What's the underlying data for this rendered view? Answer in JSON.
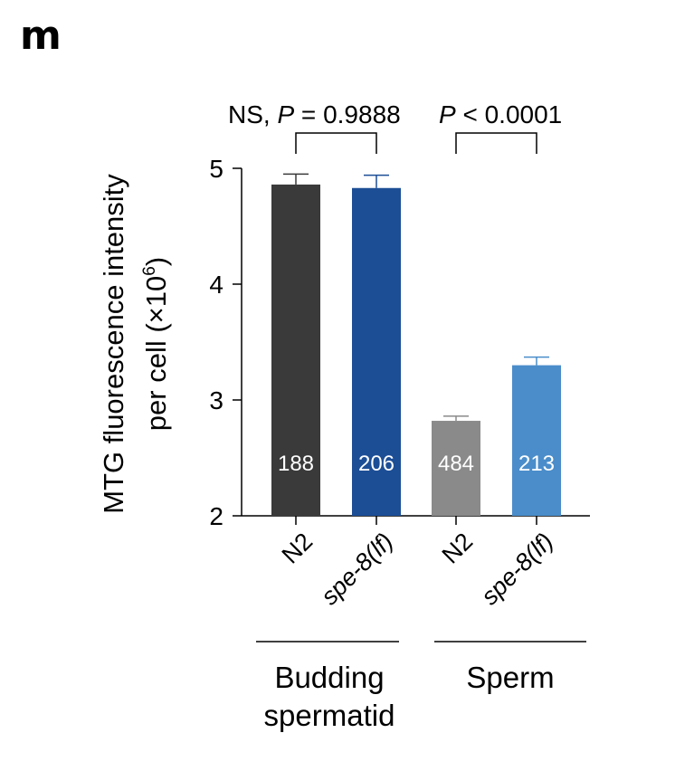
{
  "panel_label": "m",
  "chart_data": {
    "type": "bar",
    "ylabel_line1": "MTG fluorescence intensity",
    "ylabel_line2_prefix": "per cell (×10",
    "ylabel_line2_sup": "6",
    "ylabel_line2_suffix": ")",
    "ylim": [
      2,
      5
    ],
    "yticks": [
      "2",
      "3",
      "4",
      "5"
    ],
    "grid": false,
    "categories": [
      {
        "label": "N2",
        "italic": false
      },
      {
        "label": "spe-8(lf)",
        "italic": true
      },
      {
        "label": "N2",
        "italic": false
      },
      {
        "label": "spe-8(lf)",
        "italic": true
      }
    ],
    "values": [
      4.86,
      4.83,
      2.82,
      3.3
    ],
    "errors": [
      0.09,
      0.11,
      0.04,
      0.07
    ],
    "counts": [
      "188",
      "206",
      "484",
      "213"
    ],
    "colors": [
      "#3a3a3a",
      "#1c4e96",
      "#8a8a8a",
      "#4a8dca"
    ],
    "groups": [
      {
        "name_lines": [
          "Budding",
          "spermatid"
        ]
      },
      {
        "name_lines": [
          "Sperm"
        ]
      }
    ],
    "comparisons": [
      {
        "prefix": "NS, ",
        "p": "P",
        "rest": " = 0.9888"
      },
      {
        "prefix": "",
        "p": "P",
        "rest": " < 0.0001"
      }
    ]
  }
}
